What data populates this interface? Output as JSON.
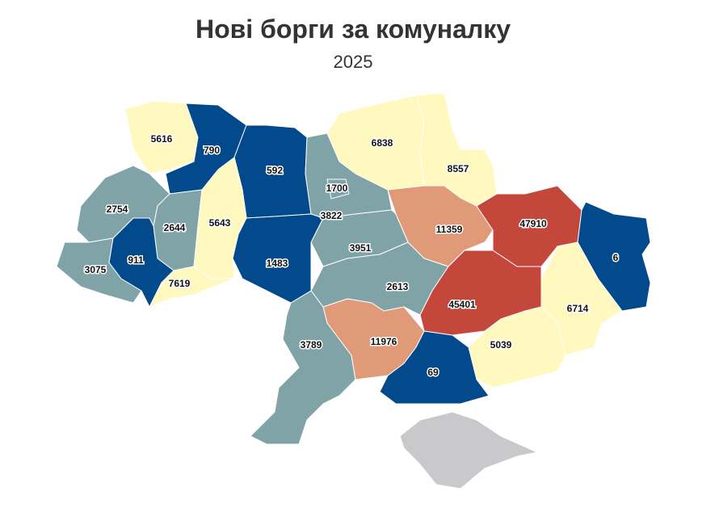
{
  "header": {
    "title": "Нові борги за комуналку",
    "subtitle": "2025"
  },
  "regions": [
    {
      "value": 5616,
      "color": "#fff9c0"
    },
    {
      "value": 790,
      "color": "#034a8c"
    },
    {
      "value": 592,
      "color": "#034a8c"
    },
    {
      "value": 6838,
      "color": "#fff9c0"
    },
    {
      "value": 8557,
      "color": "#fff9c0"
    },
    {
      "value": 3822,
      "color": "#7fa3a6"
    },
    {
      "value": 1700,
      "color": "#7fa3a6"
    },
    {
      "value": 2754,
      "color": "#7fa3a6"
    },
    {
      "value": 2644,
      "color": "#7fa3a6"
    },
    {
      "value": 5643,
      "color": "#fff9c0"
    },
    {
      "value": 11359,
      "color": "#e09a78"
    },
    {
      "value": 47910,
      "color": "#c4473c"
    },
    {
      "value": 6,
      "color": "#034a8c"
    },
    {
      "value": 3075,
      "color": "#7fa3a6"
    },
    {
      "value": 911,
      "color": "#034a8c"
    },
    {
      "value": 3951,
      "color": "#7fa3a6"
    },
    {
      "value": 1483,
      "color": "#034a8c"
    },
    {
      "value": 7619,
      "color": "#fff9c0"
    },
    {
      "value": 2613,
      "color": "#7fa3a6"
    },
    {
      "value": 45401,
      "color": "#c4473c"
    },
    {
      "value": 6714,
      "color": "#fff9c0"
    },
    {
      "value": 3789,
      "color": "#7fa3a6"
    },
    {
      "value": 11976,
      "color": "#e09a78"
    },
    {
      "value": 5039,
      "color": "#fff9c0"
    },
    {
      "value": 69,
      "color": "#034a8c"
    }
  ]
}
